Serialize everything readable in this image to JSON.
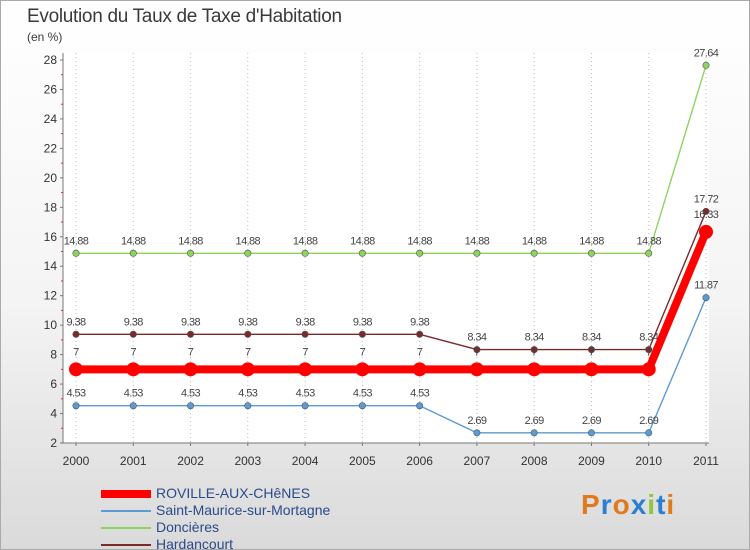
{
  "title": "Evolution du Taux de Taxe d'Habitation",
  "subtitle": "(en %)",
  "logo": {
    "letters": [
      "P",
      "r",
      "o",
      "x",
      "i",
      "t",
      "i"
    ],
    "colors": [
      "#e07a1f",
      "#2a7fd1",
      "#e07a1f",
      "#2a7fd1",
      "#8dc63f",
      "#2a7fd1",
      "#e07a1f"
    ]
  },
  "chart_data": {
    "type": "line",
    "title": "Evolution du Taux de Taxe d'Habitation",
    "ylabel": "(en %)",
    "xlabel": "",
    "x": [
      "2000",
      "2001",
      "2002",
      "2003",
      "2004",
      "2005",
      "2006",
      "2007",
      "2008",
      "2009",
      "2010",
      "2011"
    ],
    "ylim": [
      2,
      28
    ],
    "yticks": [
      "2",
      "4",
      "6",
      "8",
      "10",
      "12",
      "14",
      "16",
      "18",
      "20",
      "22",
      "24",
      "26",
      "28"
    ],
    "grid": "vertical dotted",
    "series": [
      {
        "name": "Saint-Maurice-sur-Mortagne",
        "color": "#5b9bd5",
        "values": [
          4.53,
          4.53,
          4.53,
          4.53,
          4.53,
          4.53,
          4.53,
          2.69,
          2.69,
          2.69,
          2.69,
          11.87
        ],
        "labels": [
          "4.53",
          "4.53",
          "4.53",
          "4.53",
          "4.53",
          "4.53",
          "4.53",
          "2.69",
          "2.69",
          "2.69",
          "2.69",
          "11.87"
        ]
      },
      {
        "name": "Doncières",
        "color": "#8dd35f",
        "values": [
          14.88,
          14.88,
          14.88,
          14.88,
          14.88,
          14.88,
          14.88,
          14.88,
          14.88,
          14.88,
          14.88,
          27.64
        ],
        "labels": [
          "14.88",
          "14.88",
          "14.88",
          "14.88",
          "14.88",
          "14.88",
          "14.88",
          "14.88",
          "14.88",
          "14.88",
          "14.88",
          "27.64"
        ]
      },
      {
        "name": "Hardancourt",
        "color": "#7b2a2a",
        "values": [
          9.38,
          9.38,
          9.38,
          9.38,
          9.38,
          9.38,
          9.38,
          8.34,
          8.34,
          8.34,
          8.34,
          17.72
        ],
        "labels": [
          "9.38",
          "9.38",
          "9.38",
          "9.38",
          "9.38",
          "9.38",
          "9.38",
          "8.34",
          "8.34",
          "8.34",
          "8.34",
          "17.72"
        ]
      },
      {
        "name": "ROVILLE-AUX-CHêNES",
        "color": "#ff0000",
        "bold": true,
        "values": [
          7,
          7,
          7,
          7,
          7,
          7,
          7,
          7,
          7,
          7,
          7,
          16.33
        ],
        "labels": [
          "7",
          "7",
          "7",
          "7",
          "7",
          "7",
          "7",
          "7",
          "7",
          "7",
          "7",
          "16.33"
        ]
      }
    ],
    "legend": [
      "ROVILLE-AUX-CHêNES",
      "Saint-Maurice-sur-Mortagne",
      "Doncières",
      "Hardancourt"
    ],
    "legend_colors": [
      "#ff0000",
      "#5b9bd5",
      "#8dd35f",
      "#7b2a2a"
    ],
    "legend_position": "bottom-left"
  }
}
